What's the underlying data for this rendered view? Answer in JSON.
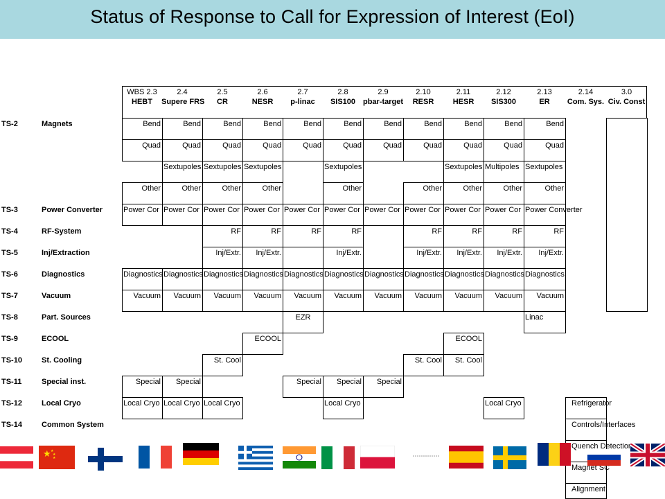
{
  "title": "Status of Response to Call for Expression of Interest (EoI)",
  "header_codes": [
    "WBS 2.3",
    "2.4",
    "2.5",
    "2.6",
    "2.7",
    "2.8",
    "2.9",
    "2.10",
    "2.11",
    "2.12",
    "2.13",
    "2.14",
    "3.0"
  ],
  "header_names": [
    "HEBT",
    "Supere FRS",
    "CR",
    "NESR",
    "p-linac",
    "SIS100",
    "pbar-target",
    "RESR",
    "HESR",
    "SIS300",
    "ER",
    "Com. Sys.",
    "Civ. Const"
  ],
  "rows": [
    {
      "code": "TS-2",
      "name": "Magnets"
    },
    {
      "code": "",
      "name": ""
    },
    {
      "code": "",
      "name": ""
    },
    {
      "code": "",
      "name": ""
    },
    {
      "code": "TS-3",
      "name": "Power Converter"
    },
    {
      "code": "TS-4",
      "name": "RF-System"
    },
    {
      "code": "TS-5",
      "name": "Inj/Extraction"
    },
    {
      "code": "TS-6",
      "name": "Diagnostics"
    },
    {
      "code": "TS-7",
      "name": "Vacuum"
    },
    {
      "code": "TS-8",
      "name": "Part. Sources"
    },
    {
      "code": "TS-9",
      "name": "ECOOL"
    },
    {
      "code": "TS-10",
      "name": "St. Cooling"
    },
    {
      "code": "TS-11",
      "name": "Special inst."
    },
    {
      "code": "TS-12",
      "name": "Local Cryo"
    },
    {
      "code": "TS-14",
      "name": "Common System"
    }
  ],
  "cells": {
    "bend": "Bend",
    "quad": "Quad",
    "sextupoles": "Sextupoles",
    "multipoles": "Multipoles",
    "other": "Other",
    "power_short": "Power Cor",
    "power_full": "Power Converter",
    "rf": "RF",
    "injext": "Inj/Extr.",
    "diag": "Diagnostics",
    "vacuum": "Vacuum",
    "ezr": "EZR",
    "linac": "Linac",
    "ecool": "ECOOL",
    "stcool": "St. Cool",
    "special": "Special",
    "localcryo": "Local Cryo"
  },
  "common_system_items": [
    "Refrigerator",
    "Controls/Interfaces",
    "Quench Detection",
    "Magnet SC",
    "Alignment"
  ],
  "flags": [
    "austria-flag",
    "china-flag",
    "finland-flag",
    "france-flag",
    "germany-flag",
    "greece-flag",
    "india-flag",
    "italy-flag",
    "poland-flag",
    "small-placeholder-flag",
    "spain-flag",
    "sweden-flag",
    "romania-flag",
    "russia-flag",
    "uk-flag"
  ],
  "colors": {
    "title_bar": "#a9d8e0"
  }
}
